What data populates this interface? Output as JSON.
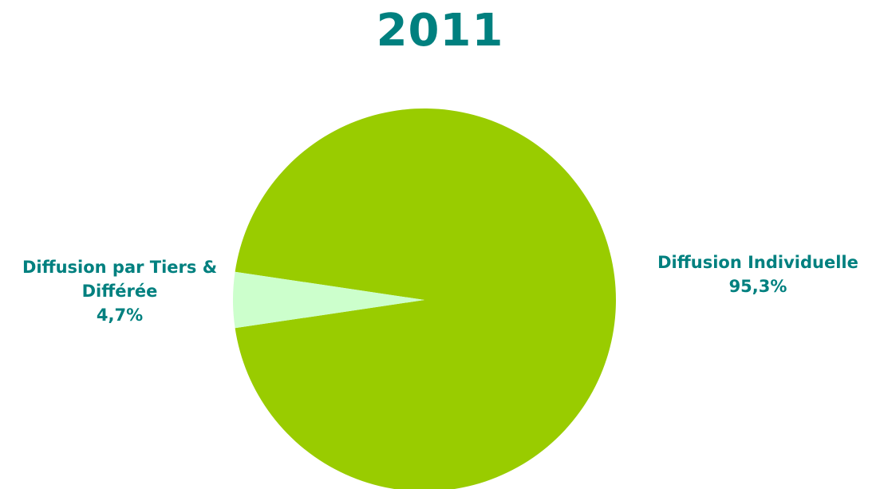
{
  "chart_data": {
    "type": "pie",
    "title": "2011",
    "slices": [
      {
        "label_lines": [
          "Diffusion Individuelle"
        ],
        "value": 95.3,
        "value_label": "95,3%",
        "color": "#99cc00"
      },
      {
        "label_lines": [
          "Diffusion par Tiers &",
          "Différée"
        ],
        "value": 4.7,
        "value_label": "4,7%",
        "color": "#ccffcc"
      }
    ],
    "title_color": "#00807f",
    "label_color": "#00807f"
  }
}
